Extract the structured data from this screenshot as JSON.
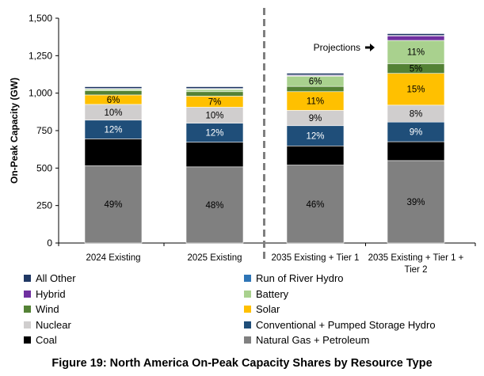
{
  "caption": "Figure 19: North America On-Peak Capacity Shares by Resource Type",
  "annotation": "Projections",
  "chart_data": {
    "type": "bar",
    "stacked": true,
    "ylabel": "On-Peak Capacity (GW)",
    "ylim": [
      0,
      1500
    ],
    "yticks": [
      0,
      250,
      500,
      750,
      1000,
      1250,
      1500
    ],
    "ytick_labels": [
      "0",
      "250",
      "500",
      "750",
      "1,000",
      "1,250",
      "1,500"
    ],
    "grid": false,
    "legend_position": "bottom",
    "categories": [
      [
        "2024 Existing"
      ],
      [
        "2025 Existing"
      ],
      [
        "2035 Existing + Tier 1"
      ],
      [
        "2035 Existing + Tier 1 +",
        "Tier 2"
      ]
    ],
    "series": [
      {
        "name": "Natural Gas + Petroleum",
        "color": "#808080",
        "values": [
          515,
          508,
          520,
          550
        ],
        "labels": [
          "49%",
          "48%",
          "46%",
          "39%"
        ],
        "label_color": "#000000"
      },
      {
        "name": "Coal",
        "color": "#000000",
        "values": [
          180,
          165,
          128,
          126
        ],
        "labels": [
          "",
          "",
          "",
          ""
        ],
        "label_color": "#ffffff"
      },
      {
        "name": "Conventional + Pumped Storage Hydro",
        "color": "#1f4e79",
        "values": [
          125,
          127,
          135,
          131
        ],
        "labels": [
          "12%",
          "12%",
          "12%",
          "9%"
        ],
        "label_color": "#ffffff"
      },
      {
        "name": "Nuclear",
        "color": "#d0cece",
        "values": [
          105,
          106,
          102,
          113
        ],
        "labels": [
          "10%",
          "10%",
          "9%",
          "8%"
        ],
        "label_color": "#000000"
      },
      {
        "name": "Solar",
        "color": "#ffc000",
        "values": [
          63,
          74,
          125,
          212
        ],
        "labels": [
          "6%",
          "7%",
          "11%",
          "15%"
        ],
        "label_color": "#000000"
      },
      {
        "name": "Wind",
        "color": "#548235",
        "values": [
          28,
          30,
          35,
          65
        ],
        "labels": [
          "",
          "",
          "",
          "5%"
        ],
        "label_color": "#000000"
      },
      {
        "name": "Battery",
        "color": "#a9d18e",
        "values": [
          10,
          15,
          68,
          155
        ],
        "labels": [
          "",
          "",
          "6%",
          "11%"
        ],
        "label_color": "#000000"
      },
      {
        "name": "Hybrid",
        "color": "#7030a0",
        "values": [
          2,
          3,
          5,
          30
        ],
        "labels": [
          "",
          "",
          "",
          ""
        ],
        "label_color": "#ffffff"
      },
      {
        "name": "Run of River Hydro",
        "color": "#2e75b6",
        "values": [
          3,
          3,
          3,
          3
        ],
        "labels": [
          "",
          "",
          "",
          ""
        ],
        "label_color": "#ffffff"
      },
      {
        "name": "All Other",
        "color": "#203864",
        "values": [
          12,
          12,
          12,
          12
        ],
        "labels": [
          "",
          "",
          "",
          ""
        ],
        "label_color": "#ffffff"
      }
    ],
    "legend_order": [
      "All Other",
      "Run of River Hydro",
      "Hybrid",
      "Battery",
      "Wind",
      "Solar",
      "Nuclear",
      "Conventional + Pumped Storage Hydro",
      "Coal",
      "Natural Gas + Petroleum"
    ]
  }
}
